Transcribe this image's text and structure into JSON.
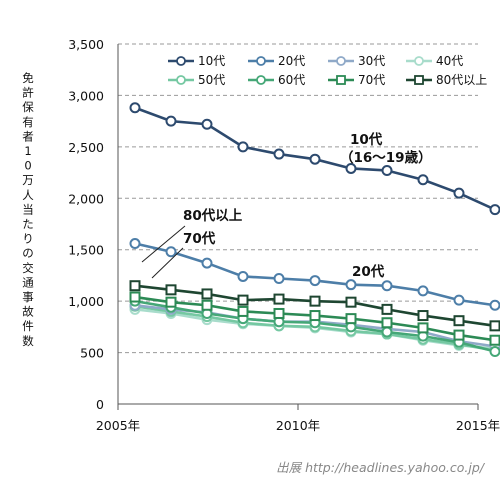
{
  "chart_data": {
    "type": "line",
    "ylabel": "免許保有者10万人当たりの交通事故件数",
    "ylim": [
      0,
      3500
    ],
    "y_ticks": [
      "0",
      "500",
      "1,000",
      "1,500",
      "2,000",
      "2,500",
      "3,000",
      "3,500"
    ],
    "x_ticks": [
      "2005年",
      "2010年",
      "2015年"
    ],
    "x": [
      2005,
      2006,
      2007,
      2008,
      2009,
      2010,
      2011,
      2012,
      2013,
      2014,
      2015
    ],
    "grid": "horizontal dashed",
    "legend_position": "top",
    "series": [
      {
        "name": "10代",
        "color": "#2d4a6e",
        "marker": "circle",
        "values": [
          2880,
          2750,
          2720,
          2500,
          2430,
          2380,
          2290,
          2270,
          2180,
          2050,
          1890
        ]
      },
      {
        "name": "20代",
        "color": "#4d7ea8",
        "marker": "circle",
        "values": [
          1560,
          1480,
          1370,
          1240,
          1220,
          1200,
          1160,
          1150,
          1100,
          1010,
          960
        ]
      },
      {
        "name": "30代",
        "color": "#8fa9c8",
        "marker": "circle",
        "values": [
          960,
          920,
          890,
          830,
          800,
          800,
          770,
          730,
          700,
          610,
          560
        ]
      },
      {
        "name": "40代",
        "color": "#a8dccb",
        "marker": "circle",
        "values": [
          920,
          880,
          820,
          780,
          760,
          740,
          700,
          680,
          620,
          570,
          540
        ]
      },
      {
        "name": "50代",
        "color": "#75c8a2",
        "marker": "circle",
        "values": [
          950,
          900,
          850,
          790,
          760,
          750,
          710,
          680,
          630,
          580,
          520
        ]
      },
      {
        "name": "60代",
        "color": "#45a777",
        "marker": "circle",
        "values": [
          1000,
          940,
          880,
          830,
          800,
          790,
          750,
          700,
          660,
          600,
          510
        ]
      },
      {
        "name": "70代",
        "color": "#2c8a55",
        "marker": "square",
        "values": [
          1040,
          990,
          960,
          900,
          880,
          860,
          830,
          790,
          740,
          670,
          620
        ]
      },
      {
        "name": "80代以上",
        "color": "#1e4631",
        "marker": "square",
        "values": [
          1150,
          1110,
          1070,
          1010,
          1020,
          1000,
          990,
          920,
          860,
          810,
          760
        ]
      }
    ],
    "annotations": [
      {
        "text": "10代",
        "anchor": "10代"
      },
      {
        "text": "（16～19歳）",
        "anchor": "10代"
      },
      {
        "text": "20代",
        "anchor": "20代"
      },
      {
        "text": "80代以上",
        "anchor": "80代以上"
      },
      {
        "text": "70代",
        "anchor": "70代"
      }
    ]
  },
  "source_text": "出展 http://headlines.yahoo.co.jp/"
}
